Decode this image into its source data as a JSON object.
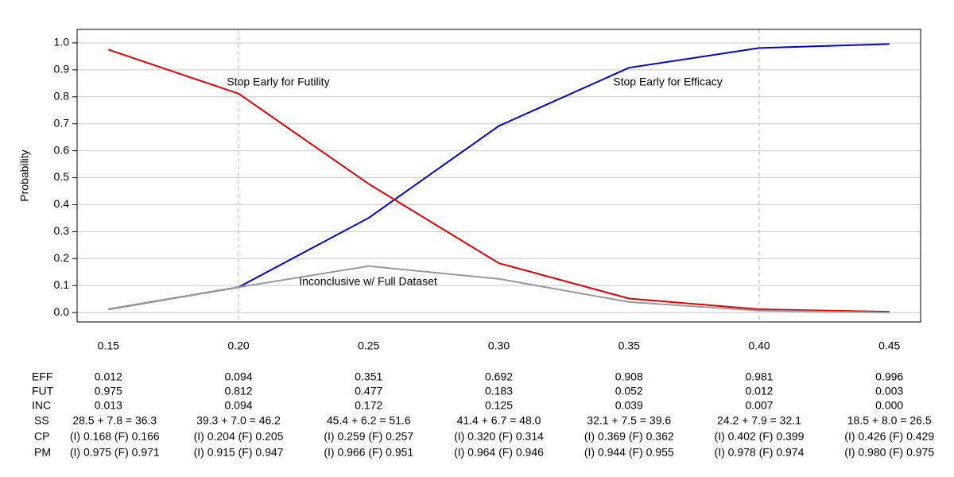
{
  "chart_data": {
    "type": "line",
    "y_label": "Probability",
    "x": [
      0.15,
      0.2,
      0.25,
      0.3,
      0.35,
      0.4,
      0.45
    ],
    "series": [
      {
        "name": "EFF",
        "color": "#0000cc",
        "values": [
          0.012,
          0.094,
          0.351,
          0.692,
          0.908,
          0.981,
          0.996
        ],
        "value_labels": [
          "0.012",
          "0.094",
          "0.351",
          "0.692",
          "0.908",
          "0.981",
          "0.996"
        ]
      },
      {
        "name": "FUT",
        "color": "#dd0000",
        "values": [
          0.975,
          0.812,
          0.477,
          0.183,
          0.052,
          0.012,
          0.003
        ],
        "value_labels": [
          "0.975",
          "0.812",
          "0.477",
          "0.183",
          "0.052",
          "0.012",
          "0.003"
        ]
      },
      {
        "name": "INC",
        "color": "#999999",
        "values": [
          0.013,
          0.094,
          0.172,
          0.125,
          0.039,
          0.007,
          0.0
        ],
        "value_labels": [
          "0.013",
          "0.094",
          "0.172",
          "0.125",
          "0.039",
          "0.007",
          "0.000"
        ]
      }
    ],
    "annotations": [
      "Stop Early for Futility",
      "Stop Early for Efficacy",
      "Inconclusive w/ Full Dataset"
    ],
    "xlim": [
      0.138,
      0.462
    ],
    "ylim": [
      -0.035,
      1.05
    ],
    "xticks": [
      0.15,
      {
        "value": 0.2,
        "label": "0.20"
      },
      0.25,
      {
        "value": 0.3,
        "label": "0.30"
      },
      0.35,
      {
        "value": 0.4,
        "label": "0.40"
      },
      0.45
    ],
    "yticks": [
      {
        "value": 0,
        "label": "0.0"
      },
      0.1,
      0.2,
      0.3,
      0.4,
      0.5,
      0.6,
      0.7,
      0.8,
      0.9,
      {
        "value": 1,
        "label": "1.0"
      }
    ],
    "grid": true,
    "reference_lines": [
      0.2,
      0.4
    ],
    "table": [
      {
        "label": "SS",
        "cells": [
          "28.5 + 7.8 = 36.3",
          "39.3 + 7.0 = 46.2",
          "45.4 + 6.2 = 51.6",
          "41.4 + 6.7 = 48.0",
          "32.1 + 7.5 = 39.6",
          "24.2 + 7.9 = 32.1",
          "18.5 + 8.0 = 26.5"
        ]
      },
      {
        "label": "CP",
        "cells": [
          "(I) 0.168 (F) 0.166",
          "(I) 0.204 (F) 0.205",
          "(I) 0.259 (F) 0.257",
          "(I) 0.320 (F) 0.314",
          "(I) 0.369 (F) 0.362",
          "(I) 0.402 (F) 0.399",
          "(I) 0.426 (F) 0.429"
        ]
      },
      {
        "label": "PM",
        "cells": [
          "(I) 0.975 (F) 0.971",
          "(I) 0.915 (F) 0.947",
          "(I) 0.966 (F) 0.951",
          "(I) 0.964 (F) 0.946",
          "(I) 0.944 (F) 0.955",
          "(I) 0.978 (F) 0.974",
          "(I) 0.980 (F) 0.975"
        ]
      }
    ]
  }
}
